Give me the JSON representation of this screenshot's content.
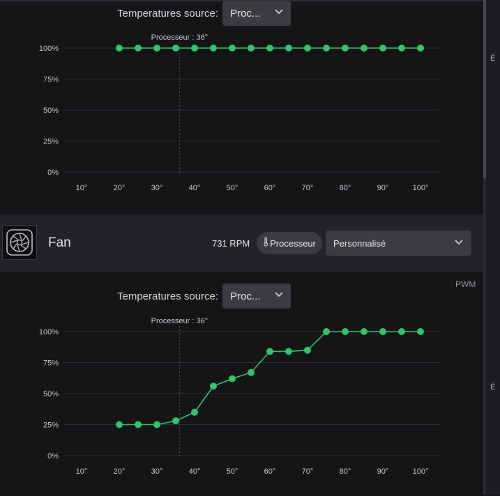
{
  "right_strip": {
    "cut_text_1": "É",
    "cut_text_2": "É"
  },
  "top_section": {
    "temp_source_label": "Temperatures source:",
    "temp_source_value": "Proc...",
    "chart_data": {
      "type": "line",
      "title": "",
      "xlabel": "",
      "ylabel": "",
      "x_ticks": [
        "10°",
        "20°",
        "30°",
        "40°",
        "50°",
        "60°",
        "70°",
        "80°",
        "90°",
        "100°"
      ],
      "y_ticks": [
        "100%",
        "75%",
        "50%",
        "25%",
        "0%"
      ],
      "xlim": [
        10,
        100
      ],
      "ylim": [
        0,
        100
      ],
      "marker": {
        "label": "Processeur : 36°",
        "x": 36
      },
      "series": [
        {
          "color": "#35c26a",
          "points": [
            [
              20,
              100
            ],
            [
              25,
              100
            ],
            [
              30,
              100
            ],
            [
              35,
              100
            ],
            [
              40,
              100
            ],
            [
              45,
              100
            ],
            [
              50,
              100
            ],
            [
              55,
              100
            ],
            [
              60,
              100
            ],
            [
              65,
              100
            ],
            [
              70,
              100
            ],
            [
              75,
              100
            ],
            [
              80,
              100
            ],
            [
              85,
              100
            ],
            [
              90,
              100
            ],
            [
              95,
              100
            ],
            [
              100,
              100
            ]
          ]
        }
      ]
    }
  },
  "fan": {
    "name": "Fan",
    "rpm": "731 RPM",
    "source_pill": "Processeur",
    "mode_value": "Personnalisé",
    "pwm_label": "PWM",
    "temp_source_label": "Temperatures source:",
    "temp_source_value": "Proc...",
    "chart_data": {
      "type": "line",
      "title": "",
      "xlabel": "",
      "ylabel": "",
      "x_ticks": [
        "10°",
        "20°",
        "30°",
        "40°",
        "50°",
        "60°",
        "70°",
        "80°",
        "90°",
        "100°"
      ],
      "y_ticks": [
        "100%",
        "75%",
        "50%",
        "25%",
        "0%"
      ],
      "xlim": [
        10,
        100
      ],
      "ylim": [
        0,
        100
      ],
      "marker": {
        "label": "Processeur : 36°",
        "x": 36
      },
      "series": [
        {
          "color": "#35c26a",
          "points": [
            [
              20,
              25
            ],
            [
              25,
              25
            ],
            [
              30,
              25
            ],
            [
              35,
              28
            ],
            [
              40,
              35
            ],
            [
              45,
              56
            ],
            [
              50,
              62
            ],
            [
              55,
              67
            ],
            [
              60,
              84
            ],
            [
              65,
              84
            ],
            [
              70,
              85
            ],
            [
              75,
              100
            ],
            [
              80,
              100
            ],
            [
              85,
              100
            ],
            [
              90,
              100
            ],
            [
              95,
              100
            ],
            [
              100,
              100
            ]
          ]
        }
      ]
    }
  },
  "colors": {
    "accent_green": "#35c26a",
    "background": "#151518",
    "fan_bar": "#232327",
    "control": "#3b3b42"
  }
}
